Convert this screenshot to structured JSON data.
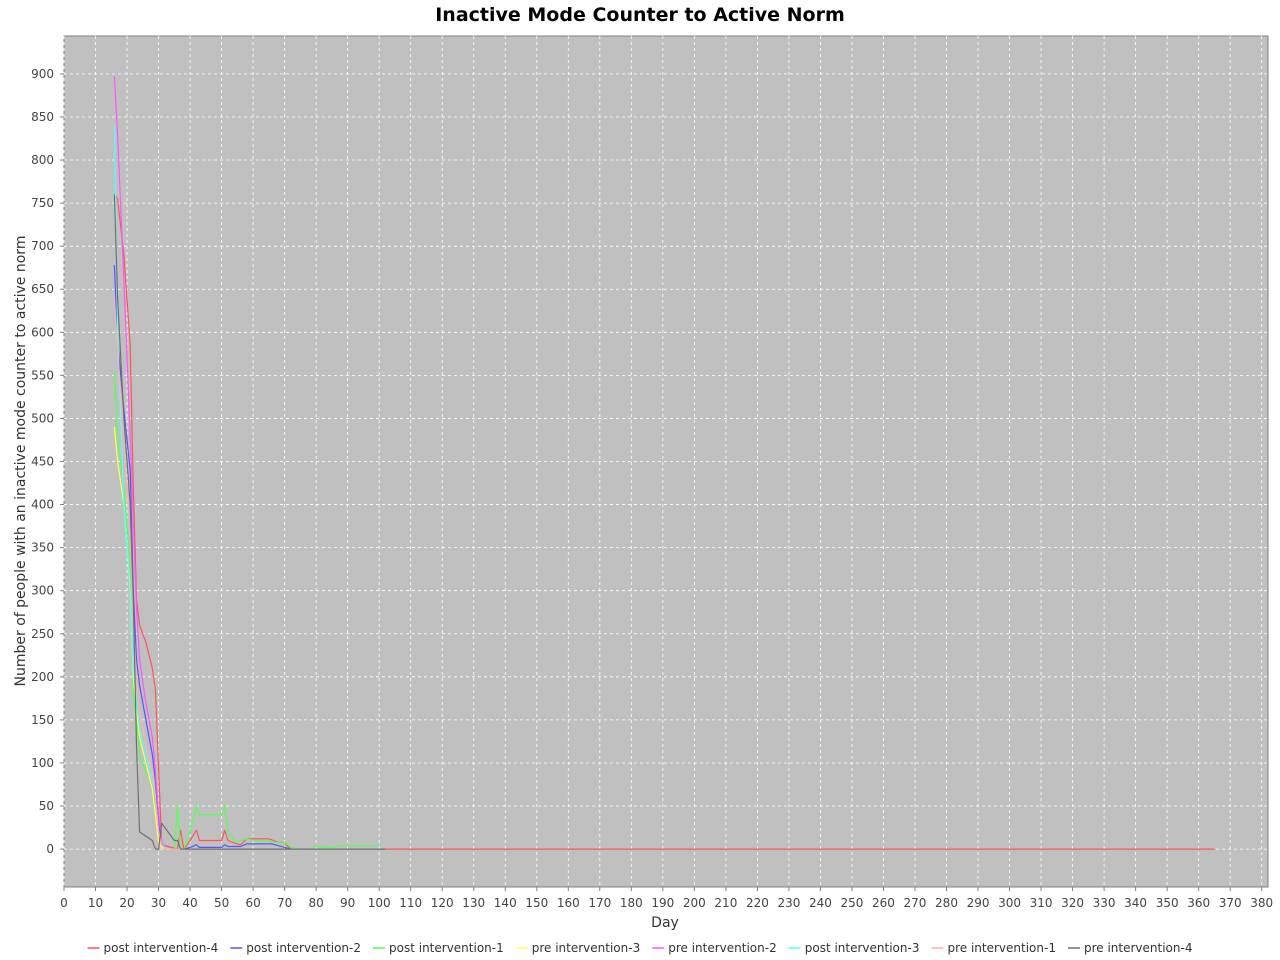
{
  "chart_data": {
    "type": "line",
    "title": "Inactive Mode Counter to Active Norm",
    "xlabel": "Day",
    "ylabel": "Number of people with an inactive mode counter to active norm",
    "xlim": [
      0,
      382
    ],
    "ylim": [
      -44,
      944
    ],
    "xticks": [
      0,
      10,
      20,
      30,
      40,
      50,
      60,
      70,
      80,
      90,
      100,
      110,
      120,
      130,
      140,
      150,
      160,
      170,
      180,
      190,
      200,
      210,
      220,
      230,
      240,
      250,
      260,
      270,
      280,
      290,
      300,
      310,
      320,
      330,
      340,
      350,
      360,
      370,
      380
    ],
    "yticks": [
      0,
      50,
      100,
      150,
      200,
      250,
      300,
      350,
      400,
      450,
      500,
      550,
      600,
      650,
      700,
      750,
      800,
      850,
      900
    ],
    "grid": true,
    "background": "#c0c0c0",
    "legend_position": "bottom",
    "series": [
      {
        "name": "post intervention-4",
        "color": "#ff5555",
        "x": [
          16,
          17,
          19,
          21,
          22,
          23,
          24,
          26,
          28,
          29,
          31,
          33,
          35,
          36,
          37,
          38,
          40,
          42,
          43,
          45,
          47,
          49,
          50,
          51,
          52,
          54,
          56,
          58,
          62,
          65,
          68,
          70,
          71,
          72,
          74,
          76,
          78,
          80,
          85,
          90,
          95,
          100,
          365
        ],
        "y": [
          760,
          755,
          690,
          585,
          420,
          290,
          260,
          240,
          210,
          185,
          5,
          3,
          1,
          0,
          22,
          0,
          10,
          22,
          10,
          10,
          10,
          10,
          10,
          22,
          10,
          7,
          5,
          12,
          12,
          12,
          8,
          8,
          3,
          0,
          0,
          0,
          0,
          0,
          0,
          0,
          0,
          0,
          0
        ]
      },
      {
        "name": "post intervention-2",
        "color": "#5555ff",
        "x": [
          16,
          17,
          19,
          21,
          22,
          23,
          24,
          26,
          28,
          29,
          30,
          31,
          32,
          34,
          36,
          38,
          40,
          42,
          43,
          45,
          47,
          49,
          50,
          51,
          52,
          54,
          56,
          58,
          60,
          62,
          64,
          66,
          68,
          70,
          72,
          75,
          80,
          90,
          100
        ],
        "y": [
          678,
          590,
          510,
          440,
          300,
          220,
          190,
          150,
          110,
          80,
          30,
          5,
          2,
          0,
          0,
          0,
          2,
          5,
          2,
          2,
          2,
          2,
          2,
          5,
          3,
          3,
          3,
          6,
          6,
          6,
          6,
          6,
          4,
          2,
          0,
          0,
          0,
          0,
          0
        ]
      },
      {
        "name": "post intervention-1",
        "color": "#55ff55",
        "x": [
          16,
          17,
          19,
          21,
          22,
          23,
          24,
          26,
          28,
          29,
          30,
          31,
          33,
          35,
          36,
          37,
          38,
          40,
          42,
          43,
          45,
          47,
          49,
          50,
          51,
          52,
          54,
          56,
          58,
          60,
          62,
          64,
          66,
          68,
          70,
          72,
          75,
          78,
          80,
          85,
          88,
          90,
          95,
          100
        ],
        "y": [
          555,
          480,
          420,
          330,
          180,
          150,
          110,
          90,
          75,
          50,
          10,
          3,
          0,
          0,
          50,
          0,
          0,
          20,
          50,
          40,
          40,
          40,
          40,
          40,
          50,
          20,
          10,
          10,
          12,
          10,
          10,
          10,
          8,
          8,
          8,
          2,
          0,
          0,
          3,
          2,
          4,
          4,
          4,
          4
        ]
      },
      {
        "name": "pre intervention-3",
        "color": "#ffff55",
        "x": [
          16,
          17,
          19,
          21,
          22,
          23,
          24,
          26,
          28,
          29,
          30,
          31,
          33,
          36,
          40,
          45,
          50,
          55,
          60,
          70,
          80,
          90,
          100
        ],
        "y": [
          490,
          450,
          400,
          300,
          200,
          160,
          130,
          100,
          70,
          40,
          8,
          2,
          0,
          0,
          0,
          0,
          0,
          0,
          0,
          0,
          0,
          0,
          0
        ]
      },
      {
        "name": "pre intervention-2",
        "color": "#ff55ff",
        "x": [
          16,
          17,
          19,
          21,
          22,
          23,
          24,
          26,
          28,
          29,
          30,
          31,
          32,
          34,
          36,
          40,
          50,
          60,
          70,
          80,
          90,
          100
        ],
        "y": [
          897,
          830,
          660,
          480,
          380,
          280,
          220,
          170,
          130,
          90,
          40,
          8,
          3,
          0,
          0,
          0,
          0,
          0,
          0,
          0,
          0,
          0
        ]
      },
      {
        "name": "post intervention-3",
        "color": "#55ffff",
        "x": [
          16,
          17,
          19,
          21,
          22,
          23,
          24,
          26,
          28,
          29,
          30,
          31,
          32,
          34,
          36,
          40,
          50,
          60,
          70,
          80,
          90,
          100
        ],
        "y": [
          840,
          600,
          400,
          300,
          210,
          170,
          140,
          110,
          80,
          60,
          20,
          5,
          2,
          0,
          0,
          0,
          0,
          0,
          0,
          0,
          0,
          0
        ]
      },
      {
        "name": "pre intervention-1",
        "color": "#ffafaf",
        "x": [
          16,
          17,
          19,
          21,
          22,
          23,
          24,
          26,
          28,
          29,
          30,
          31,
          32,
          34,
          36,
          40,
          50,
          60,
          70,
          80,
          90,
          100
        ],
        "y": [
          640,
          580,
          470,
          360,
          260,
          200,
          160,
          120,
          90,
          60,
          20,
          4,
          1,
          0,
          0,
          0,
          0,
          0,
          0,
          0,
          0,
          0
        ]
      },
      {
        "name": "pre intervention-4",
        "color": "#707070",
        "x": [
          16,
          17,
          19,
          21,
          22,
          23,
          24,
          26,
          28,
          29,
          30,
          31,
          33,
          35,
          36,
          37,
          38,
          40,
          45,
          50,
          60,
          70,
          80,
          90,
          100,
          102
        ],
        "y": [
          760,
          640,
          500,
          400,
          290,
          120,
          20,
          15,
          10,
          0,
          0,
          30,
          20,
          10,
          10,
          0,
          0,
          0,
          0,
          0,
          0,
          0,
          0,
          0,
          0,
          0
        ]
      }
    ]
  }
}
